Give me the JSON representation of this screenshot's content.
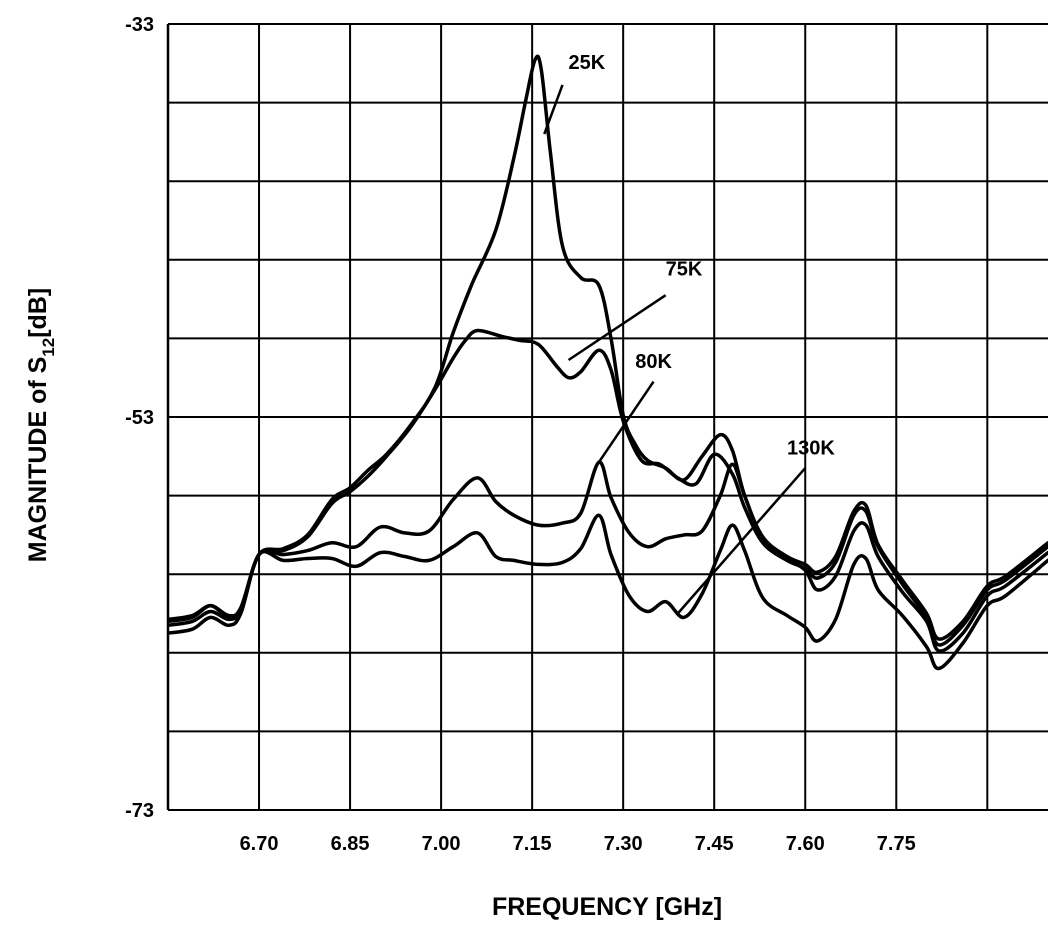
{
  "chart_data": {
    "type": "line",
    "title": "",
    "xlabel": "FREQUENCY [GHz]",
    "ylabel": {
      "prefix": "MAGNITUDE of S",
      "sub": "12",
      "suffix": "[dB]"
    },
    "xlim": [
      6.55,
      8.0
    ],
    "ylim": [
      -73,
      -33
    ],
    "grid": true,
    "x_ticks": [
      "6.70",
      "6.85",
      "7.00",
      "7.15",
      "7.30",
      "7.45",
      "7.60",
      "7.75"
    ],
    "x_tick_values": [
      6.7,
      6.85,
      7.0,
      7.15,
      7.3,
      7.45,
      7.6,
      7.75
    ],
    "y_ticks": [
      "-33",
      "-53",
      "-73"
    ],
    "y_tick_values": [
      -33,
      -53,
      -73
    ],
    "series": [
      {
        "name": "25K",
        "label_pos": [
          7.21,
          -35.3
        ],
        "leader": [
          [
            7.2,
            -36.1
          ],
          [
            7.17,
            -38.6
          ]
        ],
        "x": [
          6.55,
          6.59,
          6.62,
          6.65,
          6.67,
          6.7,
          6.74,
          6.78,
          6.82,
          6.85,
          6.88,
          6.91,
          6.95,
          6.99,
          7.02,
          7.05,
          7.09,
          7.12,
          7.14,
          7.155,
          7.165,
          7.18,
          7.2,
          7.23,
          7.26,
          7.28,
          7.3,
          7.32,
          7.34,
          7.37,
          7.4,
          7.43,
          7.46,
          7.48,
          7.5,
          7.53,
          7.57,
          7.6,
          7.62,
          7.65,
          7.68,
          7.7,
          7.72,
          7.76,
          7.8,
          7.82,
          7.86,
          7.9,
          7.93,
          8.0
        ],
        "y": [
          -63.3,
          -63.1,
          -62.6,
          -63.1,
          -62.7,
          -60.0,
          -59.7,
          -59.0,
          -57.2,
          -56.6,
          -55.7,
          -54.9,
          -53.4,
          -51.5,
          -48.7,
          -46.3,
          -43.5,
          -39.8,
          -36.8,
          -34.8,
          -35.3,
          -39.5,
          -44.3,
          -45.9,
          -46.3,
          -49.0,
          -52.9,
          -54.4,
          -55.2,
          -55.6,
          -56.2,
          -55.0,
          -53.9,
          -54.7,
          -57.0,
          -59.1,
          -60.1,
          -60.5,
          -60.9,
          -60.1,
          -57.8,
          -57.5,
          -59.5,
          -61.3,
          -63.0,
          -64.3,
          -63.4,
          -61.6,
          -61.1,
          -59.4
        ]
      },
      {
        "name": "75K",
        "label_pos": [
          7.37,
          -45.8
        ],
        "leader": [
          [
            7.37,
            -46.8
          ],
          [
            7.21,
            -50.1
          ]
        ],
        "x": [
          6.55,
          6.59,
          6.62,
          6.65,
          6.67,
          6.7,
          6.74,
          6.78,
          6.82,
          6.85,
          6.88,
          6.91,
          6.95,
          6.99,
          7.02,
          7.04,
          7.06,
          7.1,
          7.13,
          7.16,
          7.19,
          7.21,
          7.23,
          7.26,
          7.28,
          7.3,
          7.33,
          7.36,
          7.39,
          7.42,
          7.45,
          7.48,
          7.5,
          7.53,
          7.57,
          7.6,
          7.62,
          7.65,
          7.68,
          7.7,
          7.72,
          7.76,
          7.8,
          7.82,
          7.86,
          7.9,
          7.93,
          8.0
        ],
        "y": [
          -63.4,
          -63.2,
          -62.6,
          -63.2,
          -62.8,
          -60.0,
          -59.8,
          -59.1,
          -57.4,
          -56.8,
          -56.0,
          -55.0,
          -53.5,
          -51.6,
          -50.0,
          -49.1,
          -48.6,
          -48.9,
          -49.1,
          -49.3,
          -50.4,
          -51.0,
          -50.7,
          -49.6,
          -50.6,
          -53.2,
          -55.2,
          -55.4,
          -56.1,
          -56.4,
          -54.9,
          -55.9,
          -57.6,
          -59.4,
          -60.3,
          -60.7,
          -61.2,
          -60.4,
          -58.0,
          -57.8,
          -59.6,
          -61.5,
          -63.2,
          -64.6,
          -63.6,
          -61.8,
          -61.3,
          -59.6
        ]
      },
      {
        "name": "80K",
        "label_pos": [
          7.32,
          -50.5
        ],
        "leader": [
          [
            7.35,
            -51.2
          ],
          [
            7.26,
            -55.3
          ]
        ],
        "x": [
          6.55,
          6.59,
          6.62,
          6.65,
          6.67,
          6.7,
          6.74,
          6.78,
          6.82,
          6.86,
          6.9,
          6.94,
          6.98,
          7.02,
          7.06,
          7.09,
          7.12,
          7.16,
          7.2,
          7.23,
          7.26,
          7.28,
          7.31,
          7.34,
          7.37,
          7.4,
          7.43,
          7.46,
          7.48,
          7.5,
          7.53,
          7.57,
          7.6,
          7.62,
          7.65,
          7.68,
          7.7,
          7.72,
          7.76,
          7.8,
          7.82,
          7.86,
          7.9,
          7.93,
          8.0
        ],
        "y": [
          -63.6,
          -63.4,
          -62.9,
          -63.3,
          -62.8,
          -60.0,
          -60.0,
          -59.8,
          -59.4,
          -59.6,
          -58.6,
          -58.9,
          -58.8,
          -57.2,
          -56.1,
          -57.3,
          -58.0,
          -58.5,
          -58.4,
          -57.9,
          -55.3,
          -57.1,
          -58.9,
          -59.6,
          -59.2,
          -59.0,
          -58.8,
          -57.0,
          -55.4,
          -57.0,
          -59.2,
          -60.2,
          -60.8,
          -61.8,
          -61.1,
          -58.8,
          -58.5,
          -60.1,
          -61.9,
          -63.4,
          -64.9,
          -64.0,
          -62.1,
          -61.6,
          -59.9
        ]
      },
      {
        "name": "130K",
        "label_pos": [
          7.57,
          -54.9
        ],
        "leader": [
          [
            7.6,
            -55.6
          ],
          [
            7.39,
            -63.0
          ]
        ],
        "x": [
          6.55,
          6.59,
          6.62,
          6.65,
          6.67,
          6.7,
          6.74,
          6.78,
          6.82,
          6.86,
          6.9,
          6.94,
          6.98,
          7.02,
          7.06,
          7.09,
          7.12,
          7.16,
          7.2,
          7.23,
          7.26,
          7.28,
          7.31,
          7.34,
          7.37,
          7.4,
          7.43,
          7.46,
          7.48,
          7.5,
          7.53,
          7.57,
          7.6,
          7.62,
          7.65,
          7.68,
          7.7,
          7.72,
          7.76,
          7.8,
          7.82,
          7.86,
          7.9,
          7.93,
          8.0
        ],
        "y": [
          -64.0,
          -63.8,
          -63.2,
          -63.6,
          -63.0,
          -60.0,
          -60.3,
          -60.2,
          -60.2,
          -60.6,
          -59.9,
          -60.1,
          -60.3,
          -59.6,
          -58.9,
          -60.1,
          -60.3,
          -60.5,
          -60.4,
          -59.7,
          -58.0,
          -60.0,
          -62.1,
          -62.9,
          -62.4,
          -63.2,
          -62.0,
          -59.8,
          -58.5,
          -59.8,
          -62.2,
          -63.1,
          -63.7,
          -64.4,
          -63.3,
          -60.5,
          -60.2,
          -61.8,
          -63.1,
          -64.7,
          -65.8,
          -64.5,
          -62.6,
          -62.1,
          -60.3
        ]
      }
    ]
  }
}
